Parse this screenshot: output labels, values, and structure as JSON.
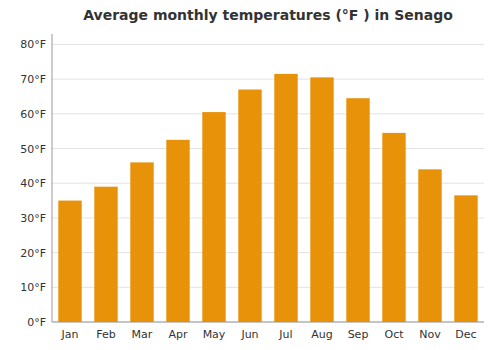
{
  "chart_data": {
    "type": "bar",
    "title": "Average monthly temperatures (°F ) in Senago",
    "categories": [
      "Jan",
      "Feb",
      "Mar",
      "Apr",
      "May",
      "Jun",
      "Jul",
      "Aug",
      "Sep",
      "Oct",
      "Nov",
      "Dec"
    ],
    "values": [
      35,
      39,
      46,
      52.5,
      60.5,
      67,
      71.5,
      70.5,
      64.5,
      54.5,
      44,
      36.5
    ],
    "color": "#E8920A",
    "ylim": [
      0,
      83
    ],
    "yticks": [
      {
        "value": 0,
        "label": "0°F"
      },
      {
        "value": 10,
        "label": "10°F"
      },
      {
        "value": 20,
        "label": "20°F"
      },
      {
        "value": 30,
        "label": "30°F"
      },
      {
        "value": 40,
        "label": "40°F"
      },
      {
        "value": 50,
        "label": "50°F"
      },
      {
        "value": 60,
        "label": "60°F"
      },
      {
        "value": 70,
        "label": "70°F"
      },
      {
        "value": 80,
        "label": "80°F"
      }
    ],
    "grid": true
  }
}
